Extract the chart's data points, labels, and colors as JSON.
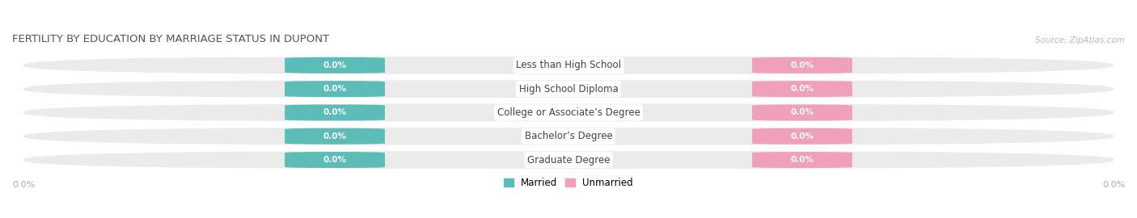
{
  "title": "FERTILITY BY EDUCATION BY MARRIAGE STATUS IN DUPONT",
  "source": "Source: ZipAtlas.com",
  "categories": [
    "Less than High School",
    "High School Diploma",
    "College or Associate’s Degree",
    "Bachelor’s Degree",
    "Graduate Degree"
  ],
  "married_values": [
    0.0,
    0.0,
    0.0,
    0.0,
    0.0
  ],
  "unmarried_values": [
    0.0,
    0.0,
    0.0,
    0.0,
    0.0
  ],
  "married_color": "#5bbcb8",
  "unmarried_color": "#f0a0b8",
  "row_bg_color": "#ebebeb",
  "category_text_color": "#444444",
  "title_color": "#555555",
  "axis_label_color": "#aaaaaa",
  "x_left_label": "0.0%",
  "x_right_label": "0.0%",
  "legend_married": "Married",
  "legend_unmarried": "Unmarried",
  "figsize": [
    14.06,
    2.7
  ],
  "dpi": 100
}
